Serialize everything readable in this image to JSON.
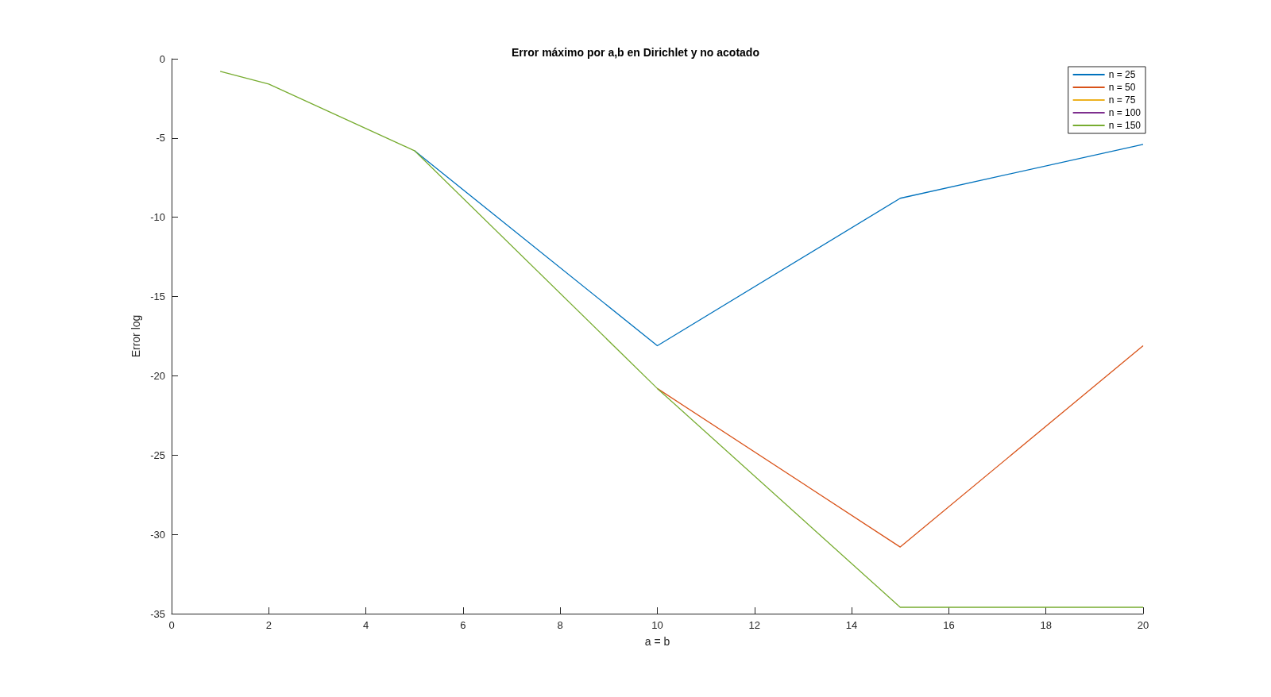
{
  "chart_data": {
    "type": "line",
    "title": "Error máximo por a,b en Dirichlet y no acotado",
    "xlabel": "a = b",
    "ylabel": "Error log",
    "x": [
      1,
      2,
      5,
      10,
      15,
      20
    ],
    "series": [
      {
        "name": "n = 25",
        "color": "#0072bd",
        "values": [
          null,
          null,
          -5.8,
          -18.1,
          -8.8,
          -5.4
        ]
      },
      {
        "name": "n = 50",
        "color": "#d95319",
        "values": [
          null,
          null,
          null,
          -20.8,
          -30.8,
          -18.1
        ]
      },
      {
        "name": "n = 75",
        "color": "#edb120",
        "values": [
          null,
          null,
          null,
          null,
          null,
          null
        ]
      },
      {
        "name": "n = 100",
        "color": "#7e2f8e",
        "values": [
          null,
          null,
          null,
          null,
          null,
          null
        ]
      },
      {
        "name": "n = 150",
        "color": "#77ac30",
        "values": [
          -0.8,
          -1.6,
          -5.8,
          -20.8,
          -34.6,
          -34.6
        ]
      }
    ],
    "xlim": [
      0,
      20
    ],
    "xticks": [
      0,
      2,
      4,
      6,
      8,
      10,
      12,
      14,
      16,
      18,
      20
    ],
    "ylim": [
      -35,
      0
    ],
    "yticks": [
      -35,
      -30,
      -25,
      -20,
      -15,
      -10,
      -5,
      0
    ],
    "grid": false,
    "legend": "top right",
    "marker": "none",
    "line_style": "solid"
  }
}
